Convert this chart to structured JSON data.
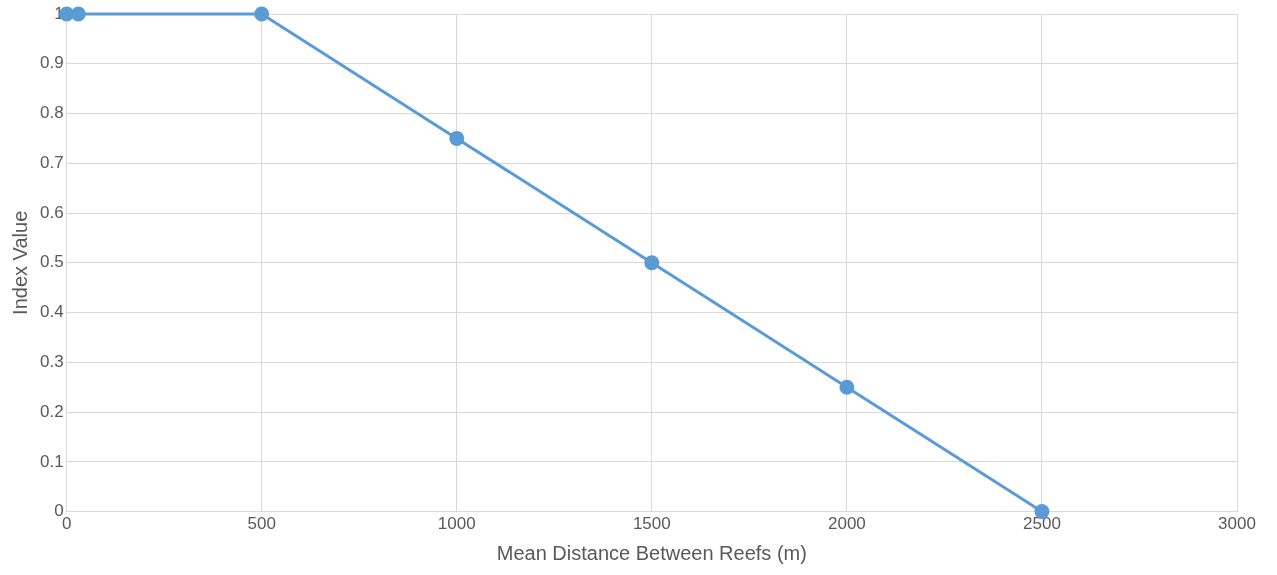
{
  "chart_data": {
    "type": "line",
    "xlabel": "Mean Distance Between Reefs (m)",
    "ylabel": "Index Value",
    "series": [
      {
        "color": "#5b9bd5",
        "x": [
          0,
          30,
          500,
          1000,
          1500,
          2000,
          2500
        ],
        "values": [
          1,
          1,
          1,
          0.75,
          0.5,
          0.25,
          0
        ]
      }
    ],
    "marker": "circle",
    "line_style": "solid",
    "xlim": [
      0,
      3000
    ],
    "xticks": [
      0,
      500,
      1000,
      1500,
      2000,
      2500,
      3000
    ],
    "ylim": [
      0,
      1
    ],
    "yticks": [
      0,
      0.1,
      0.2,
      0.3,
      0.4,
      0.5,
      0.6,
      0.7,
      0.8,
      0.9,
      1
    ],
    "grid": true,
    "legend": false
  }
}
